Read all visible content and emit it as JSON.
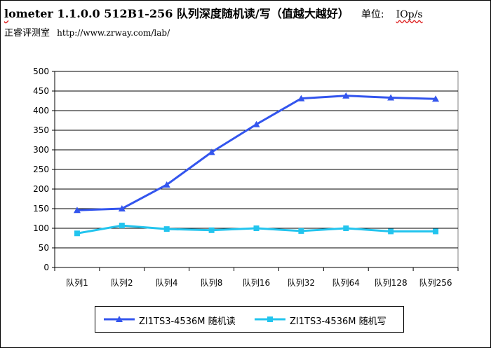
{
  "header": {
    "title_lead": "l",
    "title": "ometer 1.1.0.0 512B1-256 队列深度随机读/写（值越大越好）",
    "unit_label": "单位:",
    "unit": "IOp/s",
    "subtitle_site": "正睿评测室",
    "subtitle_url": "http://www.zrway.com/lab/"
  },
  "chart_data": {
    "type": "line",
    "categories": [
      "队列1",
      "队列2",
      "队列4",
      "队列8",
      "队列16",
      "队列32",
      "队列64",
      "队列128",
      "队列256"
    ],
    "ylim": [
      0,
      500
    ],
    "yticks": [
      0,
      50,
      100,
      150,
      200,
      250,
      300,
      350,
      400,
      450,
      500
    ],
    "grid": true,
    "legend_position": "bottom",
    "series": [
      {
        "name": "ZI1TS3-4536M 随机读",
        "color": "#3355ee",
        "marker": "triangle",
        "values": [
          146,
          150,
          211,
          294,
          365,
          431,
          438,
          433,
          430
        ]
      },
      {
        "name": "ZI1TS3-4536M 随机写",
        "color": "#22c4ee",
        "marker": "square",
        "values": [
          87,
          107,
          98,
          95,
          100,
          93,
          100,
          92,
          92
        ]
      }
    ]
  }
}
